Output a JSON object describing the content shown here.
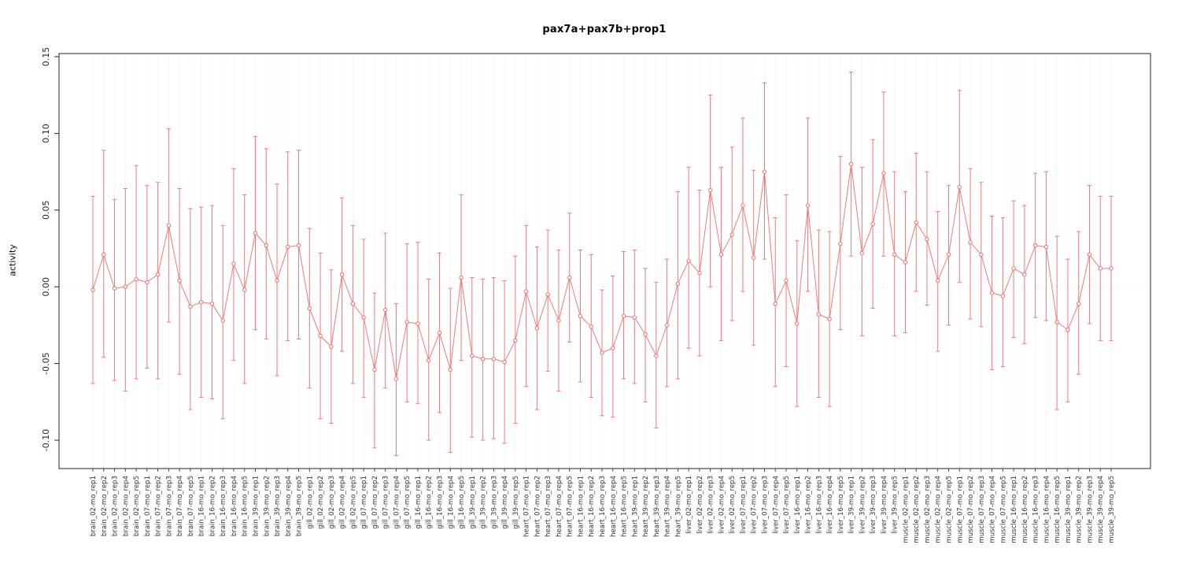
{
  "chart_data": {
    "type": "scatter",
    "title": "pax7a+pax7b+prop1",
    "xlabel": "",
    "ylabel": "activity",
    "ylim": [
      -0.115,
      0.152
    ],
    "ytick_values": [
      -0.1,
      -0.05,
      0.0,
      0.05,
      0.1,
      0.15
    ],
    "ytick_labels": [
      "-0.10",
      "-0.05",
      "0.00",
      "0.05",
      "0.10",
      "0.15"
    ],
    "grid": "dotted vertical gridline at every sample; dotted horizontal line at y=0",
    "legend": "none",
    "error_bars": true,
    "points_connected": true,
    "colors": {
      "series": "#ef7a7a",
      "grid": "#dcdcdc",
      "axis": "#262626",
      "tick_text": "#333333"
    },
    "categories": [
      "brain_02-mo_rep1",
      "brain_02-mo_rep2",
      "brain_02-mo_rep3",
      "brain_02-mo_rep4",
      "brain_02-mo_rep5",
      "brain_07-mo_rep1",
      "brain_07-mo_rep2",
      "brain_07-mo_rep3",
      "brain_07-mo_rep4",
      "brain_07-mo_rep5",
      "brain_16-mo_rep1",
      "brain_16-mo_rep2",
      "brain_16-mo_rep3",
      "brain_16-mo_rep4",
      "brain_16-mo_rep5",
      "brain_39-mo_rep1",
      "brain_39-mo_rep2",
      "brain_39-mo_rep3",
      "brain_39-mo_rep4",
      "brain_39-mo_rep5",
      "gill_02-mo_rep1",
      "gill_02-mo_rep2",
      "gill_02-mo_rep3",
      "gill_02-mo_rep4",
      "gill_02-mo_rep5",
      "gill_07-mo_rep1",
      "gill_07-mo_rep2",
      "gill_07-mo_rep3",
      "gill_07-mo_rep4",
      "gill_07-mo_rep5",
      "gill_16-mo_rep1",
      "gill_16-mo_rep2",
      "gill_16-mo_rep3",
      "gill_16-mo_rep4",
      "gill_16-mo_rep5",
      "gill_39-mo_rep1",
      "gill_39-mo_rep2",
      "gill_39-mo_rep3",
      "gill_39-mo_rep4",
      "gill_39-mo_rep5",
      "heart_07-mo_rep1",
      "heart_07-mo_rep2",
      "heart_07-mo_rep3",
      "heart_07-mo_rep4",
      "heart_07-mo_rep5",
      "heart_16-mo_rep1",
      "heart_16-mo_rep2",
      "heart_16-mo_rep3",
      "heart_16-mo_rep4",
      "heart_16-mo_rep5",
      "heart_39-mo_rep1",
      "heart_39-mo_rep2",
      "heart_39-mo_rep3",
      "heart_39-mo_rep4",
      "heart_39-mo_rep5",
      "liver_02-mo_rep1",
      "liver_02-mo_rep2",
      "liver_02-mo_rep3",
      "liver_02-mo_rep4",
      "liver_02-mo_rep5",
      "liver_07-mo_rep1",
      "liver_07-mo_rep2",
      "liver_07-mo_rep3",
      "liver_07-mo_rep4",
      "liver_07-mo_rep5",
      "liver_16-mo_rep1",
      "liver_16-mo_rep2",
      "liver_16-mo_rep3",
      "liver_16-mo_rep4",
      "liver_16-mo_rep5",
      "liver_39-mo_rep1",
      "liver_39-mo_rep2",
      "liver_39-mo_rep3",
      "liver_39-mo_rep4",
      "liver_39-mo_rep5",
      "muscle_02-mo_rep1",
      "muscle_02-mo_rep2",
      "muscle_02-mo_rep3",
      "muscle_02-mo_rep4",
      "muscle_02-mo_rep5",
      "muscle_07-mo_rep1",
      "muscle_07-mo_rep2",
      "muscle_07-mo_rep3",
      "muscle_07-mo_rep4",
      "muscle_07-mo_rep5",
      "muscle_16-mo_rep1",
      "muscle_16-mo_rep2",
      "muscle_16-mo_rep3",
      "muscle_16-mo_rep4",
      "muscle_16-mo_rep5",
      "muscle_39-mo_rep1",
      "muscle_39-mo_rep2",
      "muscle_39-mo_rep3",
      "muscle_39-mo_rep4",
      "muscle_39-mo_rep5"
    ],
    "series": [
      {
        "name": "activity",
        "values": [
          -0.002,
          0.021,
          -0.001,
          0.0,
          0.005,
          0.003,
          0.008,
          0.04,
          0.004,
          -0.013,
          -0.01,
          -0.011,
          -0.022,
          0.015,
          -0.002,
          0.035,
          0.027,
          0.004,
          0.026,
          0.027,
          -0.014,
          -0.032,
          -0.039,
          0.008,
          -0.011,
          -0.02,
          -0.054,
          -0.015,
          -0.06,
          -0.023,
          -0.024,
          -0.048,
          -0.03,
          -0.054,
          0.006,
          -0.045,
          -0.047,
          -0.047,
          -0.049,
          -0.035,
          -0.003,
          -0.027,
          -0.005,
          -0.022,
          0.006,
          -0.019,
          -0.026,
          -0.043,
          -0.04,
          -0.019,
          -0.02,
          -0.031,
          -0.045,
          -0.025,
          0.002,
          0.017,
          0.009,
          0.063,
          0.021,
          0.034,
          0.053,
          0.019,
          0.075,
          -0.011,
          0.004,
          -0.024,
          0.053,
          -0.018,
          -0.021,
          0.028,
          0.08,
          0.022,
          0.041,
          0.074,
          0.021,
          0.016,
          0.042,
          0.031,
          0.004,
          0.021,
          0.065,
          0.029,
          0.021,
          -0.004,
          -0.006,
          0.012,
          0.008,
          0.027,
          0.026,
          -0.023,
          -0.028,
          -0.011,
          0.021,
          0.012,
          0.012
        ],
        "ci_low": [
          -0.063,
          -0.046,
          -0.061,
          -0.068,
          -0.06,
          -0.053,
          -0.06,
          -0.023,
          -0.057,
          -0.08,
          -0.072,
          -0.073,
          -0.086,
          -0.048,
          -0.063,
          -0.028,
          -0.034,
          -0.058,
          -0.035,
          -0.034,
          -0.066,
          -0.086,
          -0.089,
          -0.042,
          -0.063,
          -0.072,
          -0.105,
          -0.066,
          -0.11,
          -0.075,
          -0.076,
          -0.1,
          -0.082,
          -0.108,
          -0.048,
          -0.098,
          -0.1,
          -0.099,
          -0.102,
          -0.089,
          -0.065,
          -0.08,
          -0.055,
          -0.068,
          -0.036,
          -0.062,
          -0.072,
          -0.084,
          -0.085,
          -0.06,
          -0.063,
          -0.075,
          -0.092,
          -0.065,
          -0.06,
          -0.04,
          -0.045,
          0.0,
          -0.035,
          -0.022,
          -0.003,
          -0.038,
          0.018,
          -0.065,
          -0.052,
          -0.078,
          -0.003,
          -0.072,
          -0.078,
          -0.028,
          0.02,
          -0.032,
          -0.014,
          0.02,
          -0.032,
          -0.03,
          -0.003,
          -0.012,
          -0.042,
          -0.025,
          0.003,
          -0.021,
          -0.026,
          -0.054,
          -0.052,
          -0.033,
          -0.037,
          -0.02,
          -0.022,
          -0.08,
          -0.075,
          -0.057,
          -0.024,
          -0.035,
          -0.035
        ],
        "ci_high": [
          0.059,
          0.089,
          0.057,
          0.064,
          0.079,
          0.066,
          0.068,
          0.103,
          0.064,
          0.051,
          0.052,
          0.053,
          0.04,
          0.077,
          0.06,
          0.098,
          0.09,
          0.067,
          0.088,
          0.089,
          0.038,
          0.022,
          0.011,
          0.058,
          0.04,
          0.031,
          -0.004,
          0.035,
          -0.011,
          0.028,
          0.029,
          0.005,
          0.022,
          -0.001,
          0.06,
          0.006,
          0.005,
          0.006,
          0.004,
          0.02,
          0.04,
          0.026,
          0.037,
          0.024,
          0.048,
          0.024,
          0.021,
          -0.002,
          0.007,
          0.023,
          0.024,
          0.012,
          0.003,
          0.018,
          0.062,
          0.078,
          0.063,
          0.125,
          0.078,
          0.091,
          0.11,
          0.076,
          0.133,
          0.045,
          0.06,
          0.03,
          0.11,
          0.037,
          0.036,
          0.085,
          0.14,
          0.078,
          0.096,
          0.127,
          0.075,
          0.062,
          0.087,
          0.075,
          0.049,
          0.066,
          0.128,
          0.077,
          0.068,
          0.046,
          0.045,
          0.056,
          0.053,
          0.074,
          0.075,
          0.033,
          0.018,
          0.036,
          0.066,
          0.059,
          0.059
        ]
      }
    ]
  }
}
